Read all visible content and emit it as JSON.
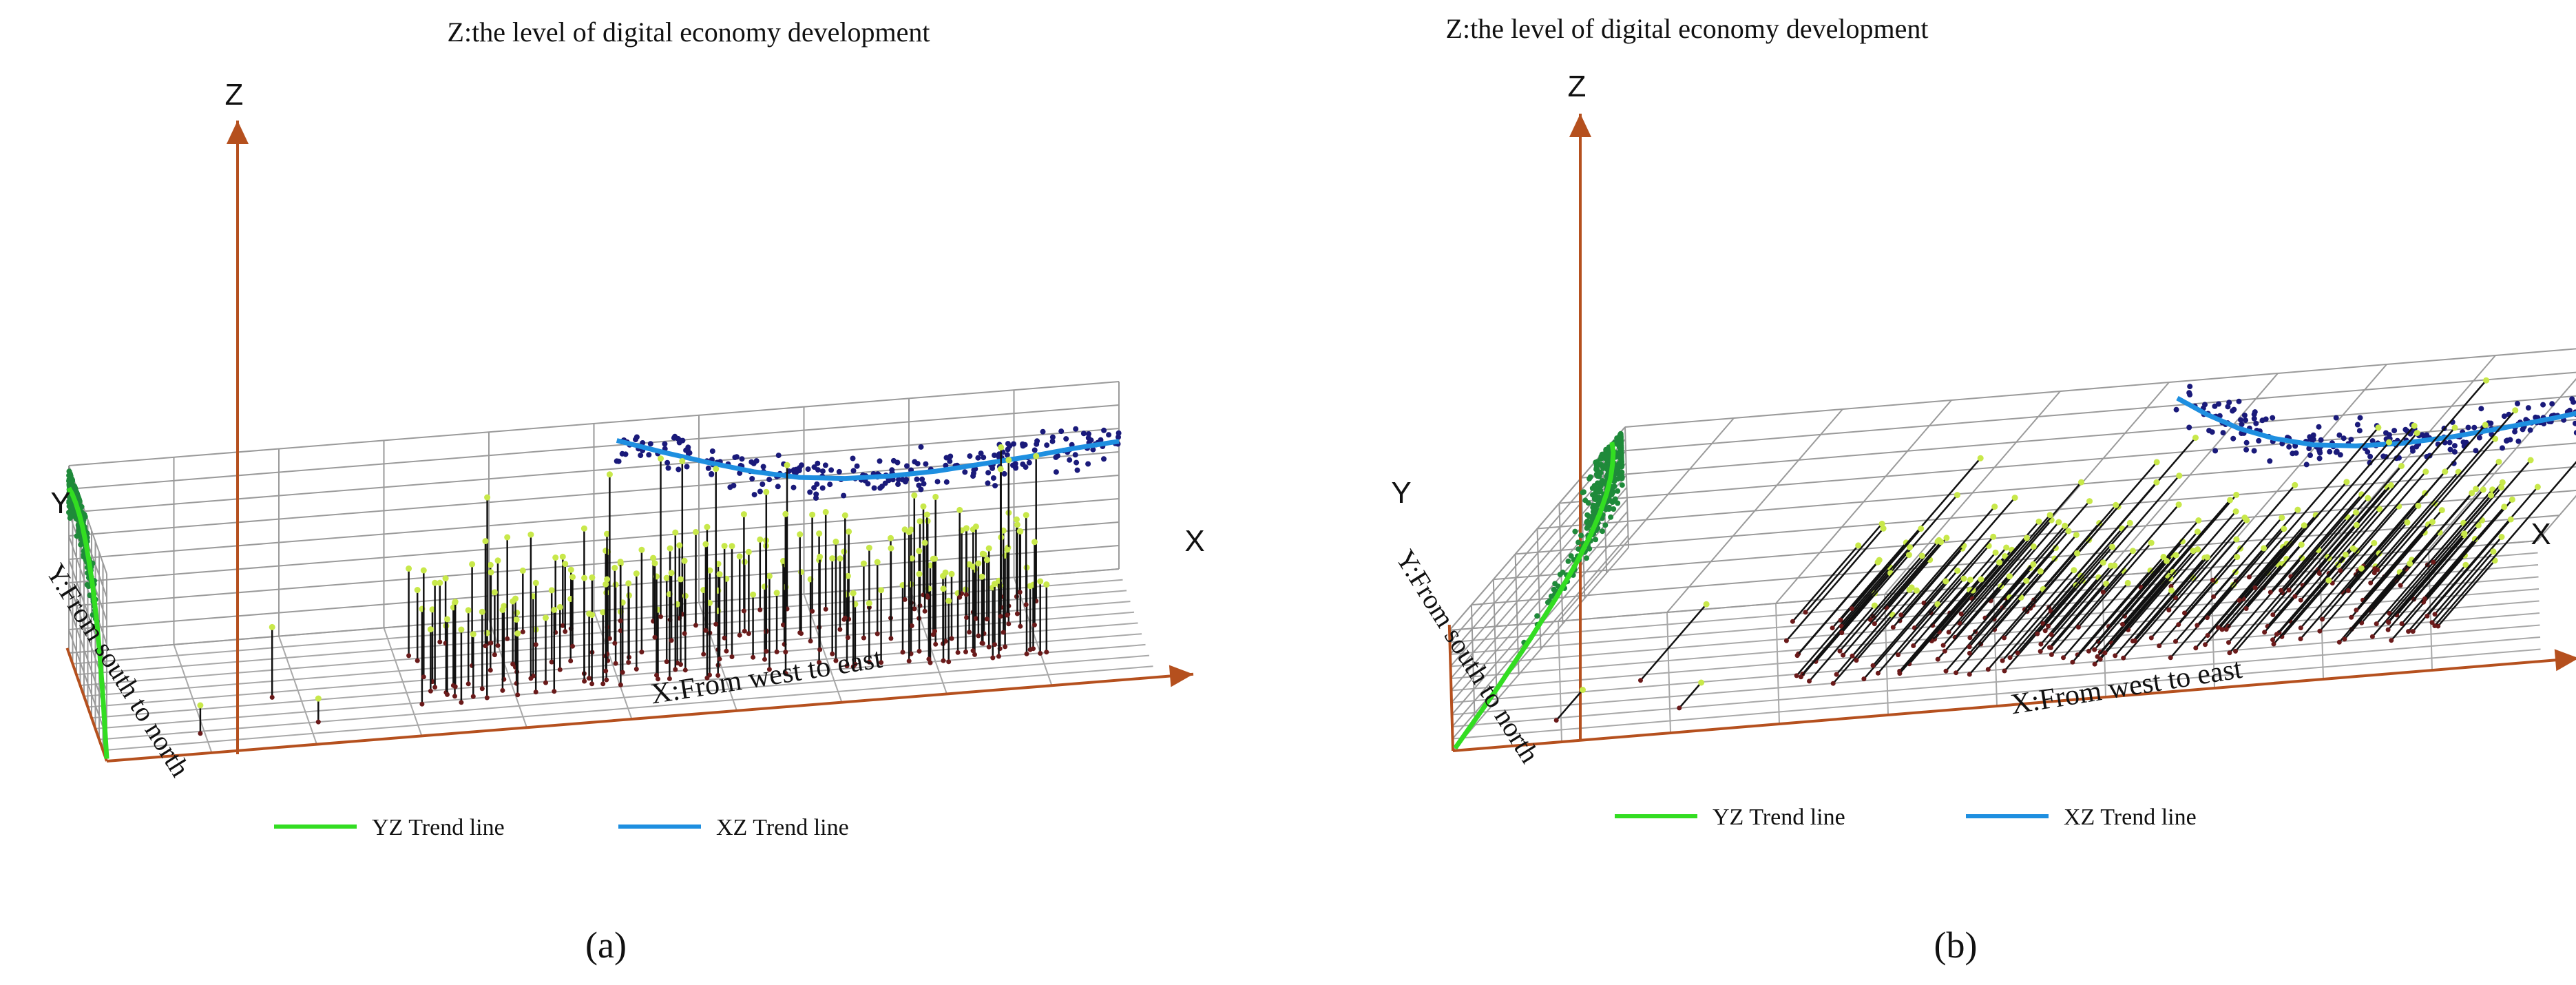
{
  "figure": {
    "panel_labels": [
      "(a)",
      "(b)"
    ]
  },
  "chart_data": [
    {
      "type": "scatter",
      "panel": "(a)",
      "title": "",
      "zlabel": "Z:the level of digital economy development",
      "xlabel": "X:From west to east",
      "ylabel": "Y:From south to north",
      "axis_letters": {
        "z": "Z",
        "y": "Y",
        "x": "X"
      },
      "grid": true,
      "legend_position": "bottom",
      "series": [
        {
          "name": "YZ Trend line",
          "color": "#33dd22",
          "y": [
            0,
            1,
            2,
            3,
            4,
            5,
            6,
            7,
            8,
            9,
            10,
            11
          ],
          "z": [
            0.1,
            2.1,
            3.7,
            4.85,
            5.7,
            6.3,
            6.75,
            7.05,
            7.2,
            7.25,
            7.2,
            7.05
          ]
        },
        {
          "name": "XZ Trend line",
          "color": "#1e8fe0",
          "x": [
            12.0,
            13.0,
            14.0,
            15.0,
            16.0,
            17.0,
            18.0,
            19.0,
            20.0,
            21.0,
            22.0,
            23.0
          ],
          "z": [
            7.2,
            6.55,
            5.95,
            5.4,
            5.0,
            4.8,
            4.75,
            4.8,
            4.95,
            5.1,
            5.3,
            5.45
          ]
        }
      ],
      "points_color": "#111111",
      "yz_projection_color": "#1f8a3a",
      "xz_projection_color": "#1a1a7a",
      "top_marker_color": "#c8e84a",
      "base_marker_color": "#6a1a1a"
    },
    {
      "type": "scatter",
      "panel": "(b)",
      "title": "",
      "zlabel": "Z:the level of digital economy development",
      "xlabel": "X:From west to east",
      "ylabel": "Y:From south to north",
      "axis_letters": {
        "z": "Z",
        "y": "Y",
        "x": "X"
      },
      "grid": true,
      "legend_position": "bottom",
      "series": [
        {
          "name": "YZ Trend line",
          "color": "#33dd22",
          "y": [
            0,
            1,
            2,
            3,
            4,
            5,
            6,
            7,
            8,
            9,
            10,
            11
          ],
          "z": [
            0.1,
            2.05,
            3.6,
            4.8,
            5.7,
            6.35,
            6.8,
            7.1,
            7.3,
            7.4,
            7.45,
            7.4
          ]
        },
        {
          "name": "XZ Trend line",
          "color": "#1e8fe0",
          "x": [
            12.0,
            13.0,
            14.0,
            15.0,
            16.0,
            17.0,
            18.0,
            19.0,
            20.0,
            21.0,
            22.0,
            23.0
          ],
          "z": [
            7.3,
            6.5,
            5.8,
            5.25,
            4.85,
            4.65,
            4.6,
            4.7,
            4.9,
            5.15,
            5.45,
            5.8
          ]
        }
      ],
      "points_color": "#111111",
      "yz_projection_color": "#1f8a3a",
      "xz_projection_color": "#1a1a7a",
      "top_marker_color": "#c8e84a",
      "base_marker_color": "#6a1a1a"
    }
  ]
}
